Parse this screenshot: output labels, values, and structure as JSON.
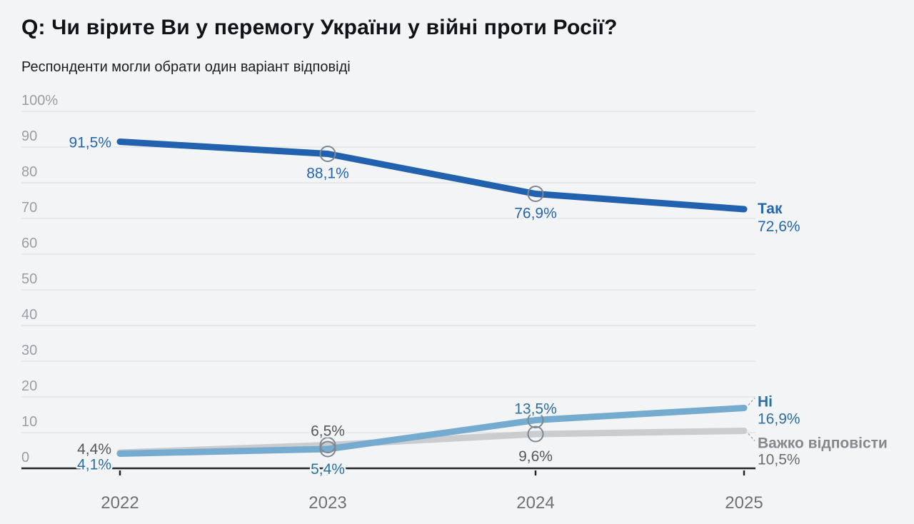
{
  "page": {
    "title": "Q: Чи вірите Ви у перемогу України у війні проти Росії?",
    "subtitle": "Респонденти могли обрати один варіант відповіді"
  },
  "colors": {
    "background": "#f3f4f6",
    "grid": "#e2e3e6",
    "axis": "#232528",
    "tick_label": "#9b9ea3",
    "year_label": "#6e7276",
    "marker_stroke": "#7f8791",
    "connector": "#a3a8ae"
  },
  "chart_data": {
    "type": "line",
    "title": "Q: Чи вірите Ви у перемогу України у війні проти Росії?",
    "subtitle": "Респонденти могли обрати один варіант відповіді",
    "x": [
      "2022",
      "2023",
      "2024",
      "2025"
    ],
    "ylim": [
      0,
      100
    ],
    "yticks": [
      0,
      10,
      20,
      30,
      40,
      50,
      60,
      70,
      80,
      90,
      100
    ],
    "ytick_labels": [
      "0",
      "10",
      "20",
      "30",
      "40",
      "50",
      "60",
      "70",
      "80",
      "90",
      "100%"
    ],
    "grid": true,
    "legend_position": "end-of-line-labels",
    "marker_indices": [
      1,
      2
    ],
    "series": [
      {
        "name": "Так",
        "values": [
          91.5,
          88.1,
          76.9,
          72.6
        ],
        "point_labels": [
          "91,5%",
          "88,1%",
          "76,9%",
          "72,6%"
        ],
        "line_color": "#2161ae",
        "label_color": "#2565b0",
        "name_color": "#2565b0"
      },
      {
        "name": "Ні",
        "values": [
          4.1,
          5.4,
          13.5,
          16.9
        ],
        "point_labels": [
          "4,1%",
          "5,4%",
          "13,5%",
          "16,9%"
        ],
        "line_color": "#76abd0",
        "label_color": "#2d6f9d",
        "name_color": "#2d6f9d"
      },
      {
        "name": "Важко відповісти",
        "values": [
          4.4,
          6.5,
          9.6,
          10.5
        ],
        "point_labels": [
          "4,4%",
          "6,5%",
          "9,6%",
          "10,5%"
        ],
        "line_color": "#cbcccf",
        "label_color": "#54575c",
        "end_value_color": "#6a6d72",
        "name_color": "#85888d"
      }
    ]
  }
}
